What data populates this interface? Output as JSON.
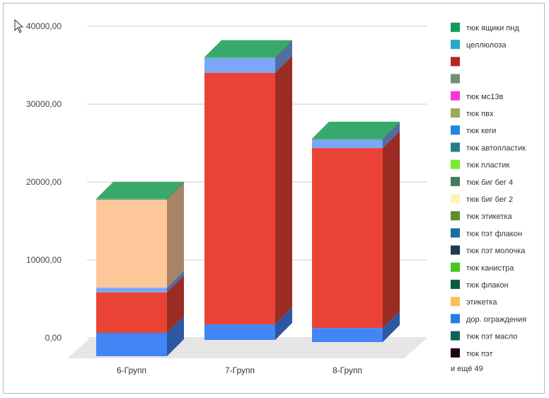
{
  "chart_data": {
    "type": "bar",
    "stacked": true,
    "style": "3d",
    "title": "",
    "xlabel": "",
    "ylabel": "",
    "ylim": [
      0,
      40000
    ],
    "y_ticks": [
      "0,00",
      "10000,00",
      "20000,00",
      "30000,00",
      "40000,00"
    ],
    "categories": [
      "6-Групп",
      "7-Групп",
      "8-Групп"
    ],
    "grid": true,
    "legend_position": "right",
    "legend": [
      {
        "name": "тюк ящики пнд",
        "color": "#0f9d58"
      },
      {
        "name": "целлюлоза",
        "color": "#26a9c9"
      },
      {
        "name": "",
        "color": "#b5261e"
      },
      {
        "name": "",
        "color": "#6f8f75"
      },
      {
        "name": "тюк мс13в",
        "color": "#ff33dd"
      },
      {
        "name": "тюк пвх",
        "color": "#9aaa5a"
      },
      {
        "name": "тюк кеги",
        "color": "#1e88e5"
      },
      {
        "name": "тюк автопластик",
        "color": "#2b7a8c"
      },
      {
        "name": "тюк пластик",
        "color": "#7be830"
      },
      {
        "name": "тюк биг бег 4",
        "color": "#3f7a5e"
      },
      {
        "name": "тюк биг бег 2",
        "color": "#fff4b8"
      },
      {
        "name": "тюк этикетка",
        "color": "#5c8f2a"
      },
      {
        "name": "тюк пэт флакон",
        "color": "#1a6fa0"
      },
      {
        "name": "тюк пэт молочка",
        "color": "#1f3a4c"
      },
      {
        "name": "тюк канистра",
        "color": "#45c821"
      },
      {
        "name": "тюк флакон",
        "color": "#0b5c44"
      },
      {
        "name": "этикетка",
        "color": "#f6c353"
      },
      {
        "name": "дор. ограждения",
        "color": "#2c7be5"
      },
      {
        "name": "тюк пэт масло",
        "color": "#0e6158"
      },
      {
        "name": "тюк пэт",
        "color": "#1c0414"
      }
    ],
    "legend_more": "и ещё 49",
    "series": [
      {
        "color": "#4285f4",
        "values": [
          3000,
          2000,
          1800
        ]
      },
      {
        "color": "#ea4335",
        "values": [
          5200,
          32300,
          23100
        ]
      },
      {
        "color": "#7ba7f5",
        "values": [
          600,
          1900,
          1100
        ]
      },
      {
        "color": "#fec79a",
        "values": [
          11300,
          0,
          0
        ]
      },
      {
        "color": "#39a96b",
        "values": [
          100,
          100,
          100
        ]
      }
    ]
  }
}
